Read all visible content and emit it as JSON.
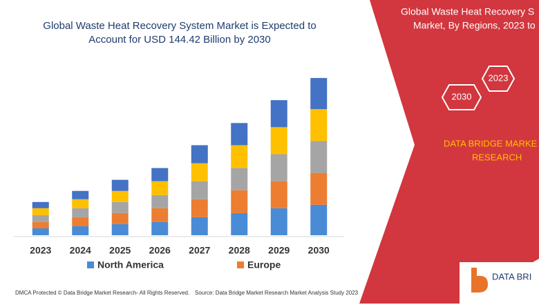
{
  "chart_data": {
    "type": "stacked-bar",
    "title": [
      "Global Waste Heat Recovery System Market is Expected to",
      "Account for USD 144.42 Billion by 2030"
    ],
    "categories": [
      "2023",
      "2024",
      "2025",
      "2026",
      "2027",
      "2028",
      "2029",
      "2030"
    ],
    "series": [
      {
        "name": "North America",
        "color": "#4a8bd6",
        "values": [
          10,
          13,
          16,
          19,
          26,
          32,
          39,
          44
        ]
      },
      {
        "name": "Europe",
        "color": "#ed7d31",
        "values": [
          9,
          13,
          16,
          20,
          26,
          33,
          39,
          46
        ]
      },
      {
        "color": "#a5a5a5",
        "values": [
          10,
          13,
          16,
          19,
          26,
          32,
          39,
          46
        ]
      },
      {
        "color": "#ffc000",
        "values": [
          10,
          13,
          16,
          20,
          26,
          33,
          39,
          46
        ]
      },
      {
        "color": "#4472c4",
        "values": [
          9,
          12,
          16,
          19,
          26,
          32,
          39,
          45
        ]
      }
    ],
    "ylim": [
      0,
      240
    ]
  },
  "panel": {
    "title": [
      "Global Waste Heat Recovery S",
      "Market, By Regions, 2023 to"
    ],
    "hexagons": [
      "2023",
      "2030"
    ],
    "brand": [
      "DATA BRIDGE MARKE",
      "RESEARCH"
    ]
  },
  "footer": {
    "left": "DMCA Protected © Data Bridge Market Research- All Rights Reserved.",
    "right": "Source: Data Bridge Market Research Market Analysis Study 2023",
    "logo": "DATA BRI"
  }
}
